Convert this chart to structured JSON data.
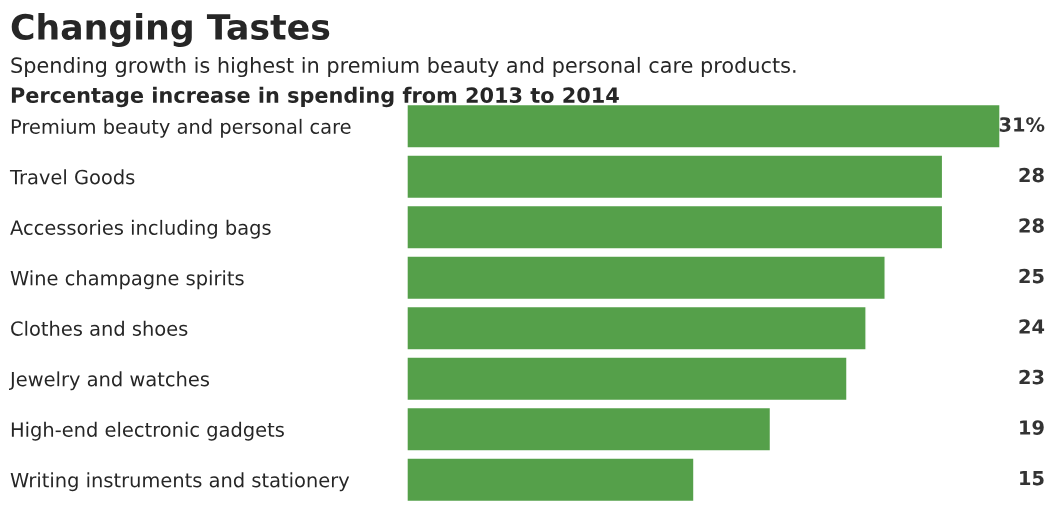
{
  "chart_data": {
    "type": "bar",
    "orientation": "horizontal",
    "title": "Changing Tastes",
    "subtitle": "Spending growth is highest in premium beauty and personal care products.",
    "annotations": [
      "Percentage increase in spending from 2013 to 2014"
    ],
    "categories": [
      "Premium beauty and personal care",
      "Travel Goods",
      "Accessories including bags",
      "Wine champagne spirits",
      "Clothes and shoes",
      "Jewelry and watches",
      "High-end electronic gadgets",
      "Writing instruments and stationery"
    ],
    "values": [
      31,
      28,
      28,
      25,
      24,
      23,
      19,
      15
    ],
    "value_labels": [
      "31%",
      "28",
      "28",
      "25",
      "24",
      "23",
      "19",
      "15"
    ],
    "color": "#55a04a",
    "grid": false,
    "legend": false
  }
}
